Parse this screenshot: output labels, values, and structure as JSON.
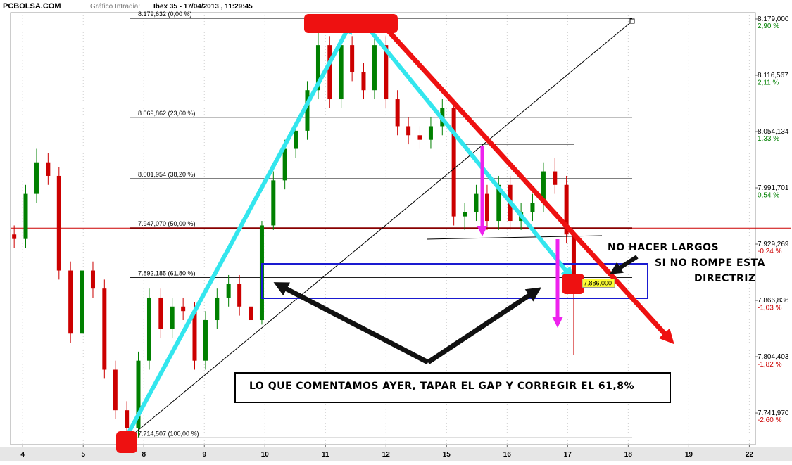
{
  "header": {
    "site": "PCBOLSA.COM",
    "chart_label": "Gráfico Intradia:",
    "title": "Ibex 35 - 17/04/2013 , 11:29:45"
  },
  "chart_data": {
    "type": "candlestick",
    "up_color": "#008000",
    "down_color": "#cc0000",
    "xlim": [
      -0.2,
      12.1
    ],
    "xticks": [
      {
        "value": 0,
        "label": "4"
      },
      {
        "value": 1,
        "label": "5"
      },
      {
        "value": 2,
        "label": "8"
      },
      {
        "value": 3,
        "label": "9"
      },
      {
        "value": 4,
        "label": "10"
      },
      {
        "value": 5,
        "label": "11"
      },
      {
        "value": 6,
        "label": "12"
      },
      {
        "value": 7,
        "label": "15"
      },
      {
        "value": 8,
        "label": "16"
      },
      {
        "value": 9,
        "label": "17"
      },
      {
        "value": 10,
        "label": "18"
      },
      {
        "value": 11,
        "label": "19"
      },
      {
        "value": 12,
        "label": "22"
      }
    ],
    "ylim": [
      7706.9,
      8186.0
    ],
    "yticks": [
      {
        "value": 8179.0,
        "label": "8.179,000"
      },
      {
        "value": 8116.567,
        "label": "8.116,567"
      },
      {
        "value": 8054.134,
        "label": "8.054,134"
      },
      {
        "value": 7991.701,
        "label": "7.991,701"
      },
      {
        "value": 7929.269,
        "label": "7.929,269"
      },
      {
        "value": 7866.836,
        "label": "7.866,836"
      },
      {
        "value": 7804.403,
        "label": "7.804,403"
      },
      {
        "value": 7741.97,
        "label": "7.741,970"
      }
    ],
    "y2lim": [
      -3.04,
      2.99
    ],
    "y2ticks": [
      {
        "value": 2.9,
        "label": "2,90 %"
      },
      {
        "value": 2.11,
        "label": "2,11 %"
      },
      {
        "value": 1.33,
        "label": "1,33 %"
      },
      {
        "value": 0.54,
        "label": "0,54 %"
      },
      {
        "value": -0.24,
        "label": "-0,24 %"
      },
      {
        "value": -1.03,
        "label": "-1,03 %"
      },
      {
        "value": -1.82,
        "label": "-1,82 %"
      },
      {
        "value": -2.6,
        "label": "-2,60 %"
      }
    ],
    "grid": true,
    "candles": {
      "x": [
        -0.14,
        0.05,
        0.23,
        0.42,
        0.6,
        0.79,
        0.98,
        1.16,
        1.35,
        1.53,
        1.72,
        1.91,
        2.09,
        2.28,
        2.47,
        2.65,
        2.84,
        3.02,
        3.21,
        3.4,
        3.58,
        3.77,
        3.95,
        4.14,
        4.33,
        4.51,
        4.7,
        4.88,
        5.07,
        5.26,
        5.44,
        5.63,
        5.81,
        6.0,
        6.19,
        6.37,
        6.56,
        6.74,
        6.93,
        7.12,
        7.3,
        7.49,
        7.67,
        7.86,
        8.05,
        8.23,
        8.42,
        8.6,
        8.79,
        8.98,
        9.1
      ],
      "open": [
        7940,
        7935,
        7985,
        8020,
        8005,
        7900,
        7830,
        7900,
        7880,
        7790,
        7745,
        7725,
        7800,
        7870,
        7835,
        7860,
        7855,
        7800,
        7845,
        7870,
        7885,
        7860,
        7845,
        7950,
        8000,
        8035,
        8055,
        8100,
        8150,
        8090,
        8150,
        8120,
        8100,
        8150,
        8090,
        8060,
        8050,
        8045,
        8060,
        8080,
        7960,
        7965,
        7985,
        7955,
        7995,
        7955,
        7965,
        7975,
        8010,
        7995,
        7940
      ],
      "high": [
        7950,
        7995,
        8035,
        8030,
        8015,
        7910,
        7910,
        7910,
        7890,
        7800,
        7755,
        7810,
        7880,
        7880,
        7870,
        7870,
        7865,
        7855,
        7880,
        7895,
        7895,
        7870,
        7955,
        8010,
        8045,
        8065,
        8110,
        8179,
        8160,
        8160,
        8160,
        8130,
        8160,
        8160,
        8100,
        8070,
        8060,
        8070,
        8090,
        8090,
        7975,
        7995,
        7995,
        8005,
        8005,
        7975,
        7985,
        8020,
        8025,
        8005,
        7945
      ],
      "low": [
        7925,
        7925,
        7975,
        7995,
        7890,
        7820,
        7820,
        7870,
        7780,
        7735,
        7714.5,
        7715,
        7790,
        7825,
        7825,
        7845,
        7790,
        7790,
        7835,
        7860,
        7850,
        7835,
        7840,
        7945,
        7990,
        8025,
        8045,
        8090,
        8080,
        8080,
        8110,
        8090,
        8090,
        8080,
        8050,
        8040,
        8035,
        8035,
        8050,
        7950,
        7945,
        7955,
        7945,
        7945,
        7945,
        7945,
        7955,
        7965,
        7985,
        7930,
        7806
      ],
      "close": [
        7935,
        7985,
        8020,
        8005,
        7900,
        7830,
        7900,
        7880,
        7790,
        7745,
        7725,
        7800,
        7870,
        7835,
        7860,
        7855,
        7800,
        7845,
        7870,
        7885,
        7860,
        7845,
        7950,
        8000,
        8035,
        8055,
        8100,
        8150,
        8090,
        8150,
        8120,
        8100,
        8150,
        8090,
        8060,
        8050,
        8045,
        8060,
        8080,
        7960,
        7965,
        7985,
        7955,
        7995,
        7955,
        7965,
        7975,
        8010,
        7995,
        7940,
        7886
      ]
    },
    "hline": {
      "value": 7947.07,
      "color": "#cc0000"
    },
    "fib_levels": [
      {
        "value": 8179.632,
        "label": "8.179,632 (0,00 %)",
        "color": "#000000"
      },
      {
        "value": 8069.862,
        "label": "8.069,862 (23,60 %)",
        "color": "#000000"
      },
      {
        "value": 8001.954,
        "label": "8.001,954 (38,20 %)",
        "color": "#000000"
      },
      {
        "value": 7947.07,
        "label": "7.947,070 (50,00 %)",
        "color": "#880000"
      },
      {
        "value": 7892.185,
        "label": "7.892,185 (61,80 %)",
        "color": "#000000"
      },
      {
        "value": 7714.507,
        "label": "7.714,507 (100,00 %)",
        "color": "#000000"
      }
    ],
    "last_price": {
      "value": 7886.0,
      "label": "7.886,000"
    }
  },
  "annotations": {
    "line1": "NO HACER LARGOS",
    "line2": "SI NO ROMPE ESTA",
    "line3": "DIRECTRIZ",
    "box": "LO QUE COMENTAMOS AYER, TAPAR EL GAP Y CORREGIR EL 61,8%"
  }
}
